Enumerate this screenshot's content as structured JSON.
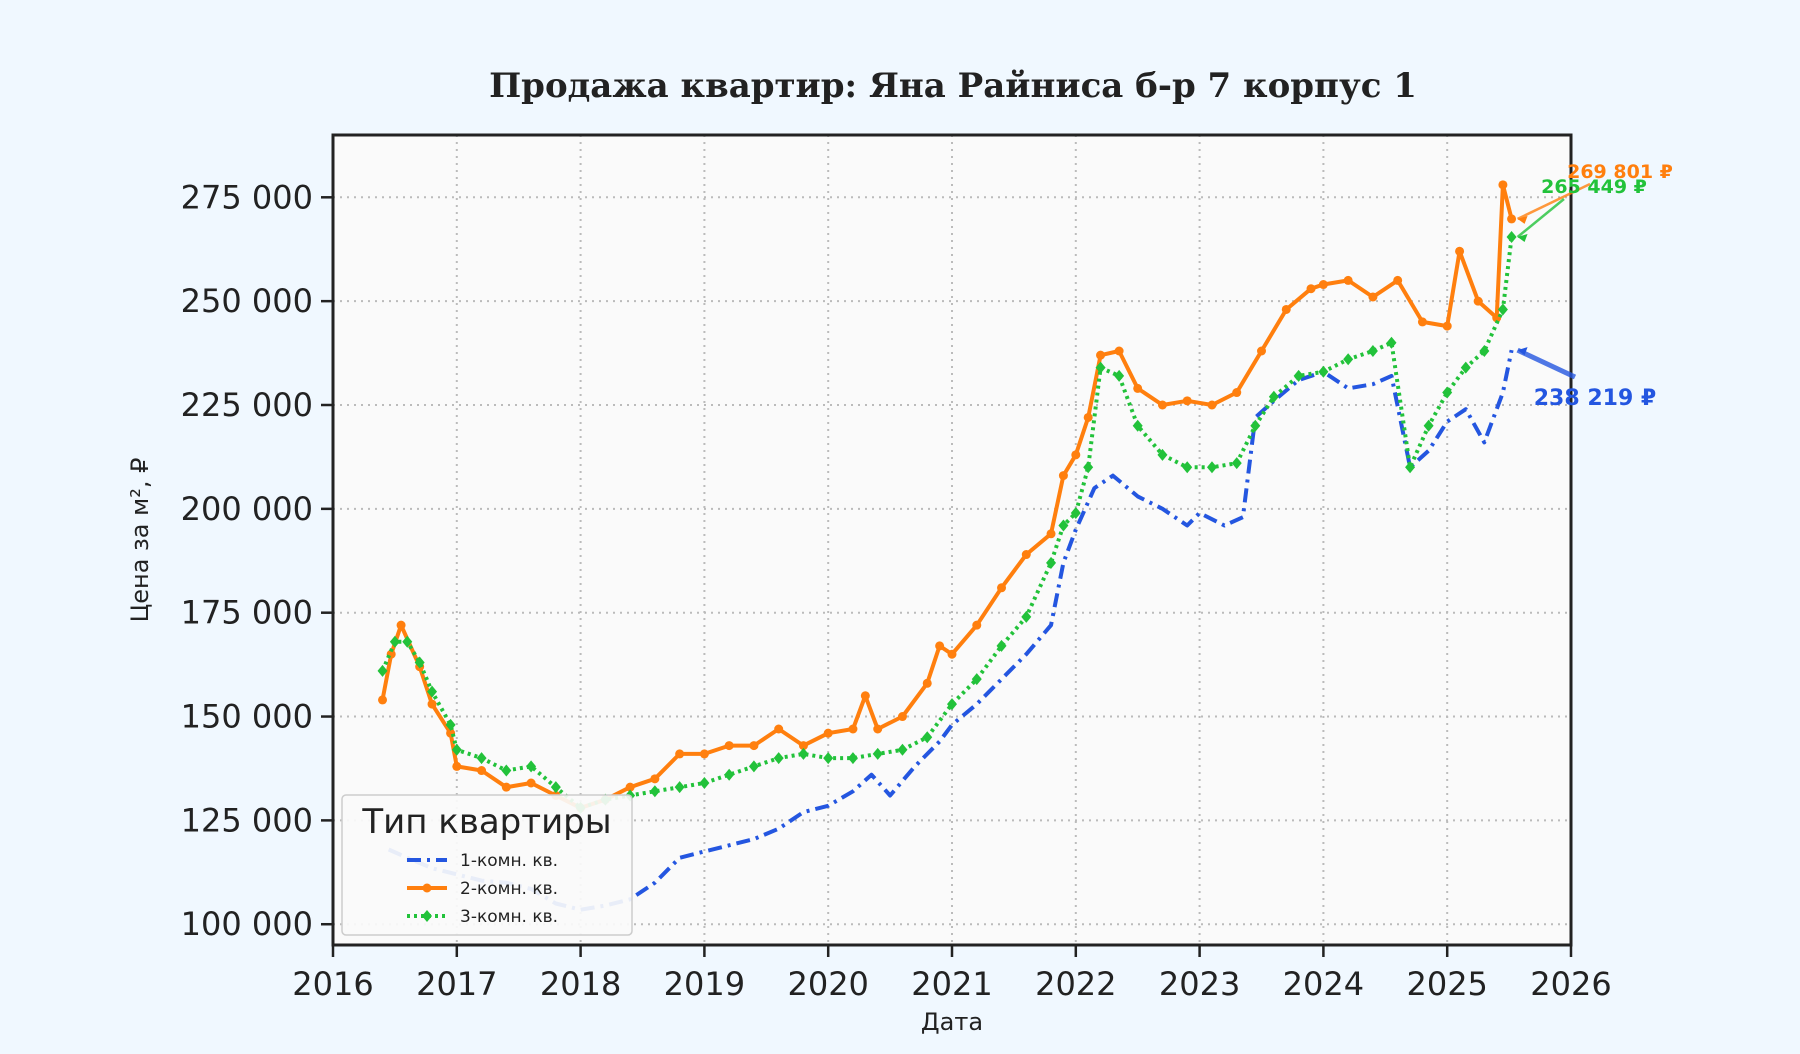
{
  "chart_data": {
    "type": "line",
    "title": "Продажа квартир: Яна Райниса б-р 7 корпус 1",
    "xlabel": "Дата",
    "ylabel": "Цена за м², ₽",
    "xlim": [
      2016,
      2026
    ],
    "ylim": [
      95000,
      290000
    ],
    "x_ticks": [
      "2016",
      "2017",
      "2018",
      "2019",
      "2020",
      "2021",
      "2022",
      "2023",
      "2024",
      "2025",
      "2026"
    ],
    "y_ticks": [
      "100 000",
      "125 000",
      "150 000",
      "175 000",
      "200 000",
      "225 000",
      "250 000",
      "275 000"
    ],
    "y_tick_values": [
      100000,
      125000,
      150000,
      175000,
      200000,
      225000,
      250000,
      275000
    ],
    "grid": true,
    "legend": {
      "title": "Тип квартиры",
      "position": "bottom-left"
    },
    "series": [
      {
        "name": "1-комн. кв.",
        "color": "#2456e0",
        "line_style": "dashdot",
        "marker": "none",
        "end_label": "238 219 ₽",
        "points": [
          [
            2016.45,
            118000
          ],
          [
            2016.6,
            116000
          ],
          [
            2016.8,
            113500
          ],
          [
            2017.0,
            112000
          ],
          [
            2017.2,
            110500
          ],
          [
            2017.4,
            110000
          ],
          [
            2017.6,
            108500
          ],
          [
            2017.8,
            105000
          ],
          [
            2018.0,
            103500
          ],
          [
            2018.2,
            104500
          ],
          [
            2018.4,
            106000
          ],
          [
            2018.6,
            110000
          ],
          [
            2018.8,
            116000
          ],
          [
            2019.0,
            117500
          ],
          [
            2019.2,
            119000
          ],
          [
            2019.4,
            120500
          ],
          [
            2019.6,
            123000
          ],
          [
            2019.8,
            127000
          ],
          [
            2020.0,
            128500
          ],
          [
            2020.2,
            132000
          ],
          [
            2020.35,
            136000
          ],
          [
            2020.5,
            131000
          ],
          [
            2020.7,
            138000
          ],
          [
            2020.9,
            144000
          ],
          [
            2021.0,
            148000
          ],
          [
            2021.2,
            153000
          ],
          [
            2021.4,
            159000
          ],
          [
            2021.6,
            165000
          ],
          [
            2021.8,
            172000
          ],
          [
            2021.9,
            187000
          ],
          [
            2022.0,
            195000
          ],
          [
            2022.15,
            205000
          ],
          [
            2022.3,
            208000
          ],
          [
            2022.5,
            203000
          ],
          [
            2022.7,
            200000
          ],
          [
            2022.9,
            196000
          ],
          [
            2023.0,
            199000
          ],
          [
            2023.2,
            196000
          ],
          [
            2023.35,
            198000
          ],
          [
            2023.45,
            222000
          ],
          [
            2023.6,
            226000
          ],
          [
            2023.8,
            231000
          ],
          [
            2024.0,
            233000
          ],
          [
            2024.2,
            229000
          ],
          [
            2024.4,
            230000
          ],
          [
            2024.55,
            232000
          ],
          [
            2024.7,
            210000
          ],
          [
            2024.85,
            214000
          ],
          [
            2025.0,
            221000
          ],
          [
            2025.15,
            224000
          ],
          [
            2025.3,
            216000
          ],
          [
            2025.45,
            228000
          ],
          [
            2025.52,
            238219
          ]
        ]
      },
      {
        "name": "2-комн. кв.",
        "color": "#ff7f0e",
        "line_style": "solid",
        "marker": "circle",
        "end_label": "269 801 ₽",
        "points": [
          [
            2016.4,
            154000
          ],
          [
            2016.47,
            165000
          ],
          [
            2016.55,
            172000
          ],
          [
            2016.7,
            162000
          ],
          [
            2016.8,
            153000
          ],
          [
            2016.95,
            146000
          ],
          [
            2017.0,
            138000
          ],
          [
            2017.2,
            137000
          ],
          [
            2017.4,
            133000
          ],
          [
            2017.6,
            134000
          ],
          [
            2017.8,
            131000
          ],
          [
            2018.0,
            128000
          ],
          [
            2018.2,
            130000
          ],
          [
            2018.4,
            133000
          ],
          [
            2018.6,
            135000
          ],
          [
            2018.8,
            141000
          ],
          [
            2019.0,
            141000
          ],
          [
            2019.2,
            143000
          ],
          [
            2019.4,
            143000
          ],
          [
            2019.6,
            147000
          ],
          [
            2019.8,
            143000
          ],
          [
            2020.0,
            146000
          ],
          [
            2020.2,
            147000
          ],
          [
            2020.3,
            155000
          ],
          [
            2020.4,
            147000
          ],
          [
            2020.6,
            150000
          ],
          [
            2020.8,
            158000
          ],
          [
            2020.9,
            167000
          ],
          [
            2021.0,
            165000
          ],
          [
            2021.2,
            172000
          ],
          [
            2021.4,
            181000
          ],
          [
            2021.6,
            189000
          ],
          [
            2021.8,
            194000
          ],
          [
            2021.9,
            208000
          ],
          [
            2022.0,
            213000
          ],
          [
            2022.1,
            222000
          ],
          [
            2022.2,
            237000
          ],
          [
            2022.35,
            238000
          ],
          [
            2022.5,
            229000
          ],
          [
            2022.7,
            225000
          ],
          [
            2022.9,
            226000
          ],
          [
            2023.1,
            225000
          ],
          [
            2023.3,
            228000
          ],
          [
            2023.5,
            238000
          ],
          [
            2023.7,
            248000
          ],
          [
            2023.9,
            253000
          ],
          [
            2024.0,
            254000
          ],
          [
            2024.2,
            255000
          ],
          [
            2024.4,
            251000
          ],
          [
            2024.6,
            255000
          ],
          [
            2024.8,
            245000
          ],
          [
            2025.0,
            244000
          ],
          [
            2025.1,
            262000
          ],
          [
            2025.25,
            250000
          ],
          [
            2025.4,
            246000
          ],
          [
            2025.45,
            278000
          ],
          [
            2025.52,
            269801
          ]
        ]
      },
      {
        "name": "3-комн. кв.",
        "color": "#22c23a",
        "line_style": "dotted",
        "marker": "diamond",
        "end_label": "265 449 ₽",
        "points": [
          [
            2016.4,
            161000
          ],
          [
            2016.5,
            168000
          ],
          [
            2016.6,
            168000
          ],
          [
            2016.7,
            163000
          ],
          [
            2016.8,
            156000
          ],
          [
            2016.95,
            148000
          ],
          [
            2017.0,
            142000
          ],
          [
            2017.2,
            140000
          ],
          [
            2017.4,
            137000
          ],
          [
            2017.6,
            138000
          ],
          [
            2017.8,
            133000
          ],
          [
            2018.0,
            128000
          ],
          [
            2018.2,
            130000
          ],
          [
            2018.4,
            131000
          ],
          [
            2018.6,
            132000
          ],
          [
            2018.8,
            133000
          ],
          [
            2019.0,
            134000
          ],
          [
            2019.2,
            136000
          ],
          [
            2019.4,
            138000
          ],
          [
            2019.6,
            140000
          ],
          [
            2019.8,
            141000
          ],
          [
            2020.0,
            140000
          ],
          [
            2020.2,
            140000
          ],
          [
            2020.4,
            141000
          ],
          [
            2020.6,
            142000
          ],
          [
            2020.8,
            145000
          ],
          [
            2021.0,
            153000
          ],
          [
            2021.2,
            159000
          ],
          [
            2021.4,
            167000
          ],
          [
            2021.6,
            174000
          ],
          [
            2021.8,
            187000
          ],
          [
            2021.9,
            196000
          ],
          [
            2022.0,
            199000
          ],
          [
            2022.1,
            210000
          ],
          [
            2022.2,
            234000
          ],
          [
            2022.35,
            232000
          ],
          [
            2022.5,
            220000
          ],
          [
            2022.7,
            213000
          ],
          [
            2022.9,
            210000
          ],
          [
            2023.1,
            210000
          ],
          [
            2023.3,
            211000
          ],
          [
            2023.45,
            220000
          ],
          [
            2023.6,
            227000
          ],
          [
            2023.8,
            232000
          ],
          [
            2024.0,
            233000
          ],
          [
            2024.2,
            236000
          ],
          [
            2024.4,
            238000
          ],
          [
            2024.55,
            240000
          ],
          [
            2024.7,
            210000
          ],
          [
            2024.85,
            220000
          ],
          [
            2025.0,
            228000
          ],
          [
            2025.15,
            234000
          ],
          [
            2025.3,
            238000
          ],
          [
            2025.45,
            248000
          ],
          [
            2025.52,
            265449
          ]
        ]
      }
    ]
  }
}
